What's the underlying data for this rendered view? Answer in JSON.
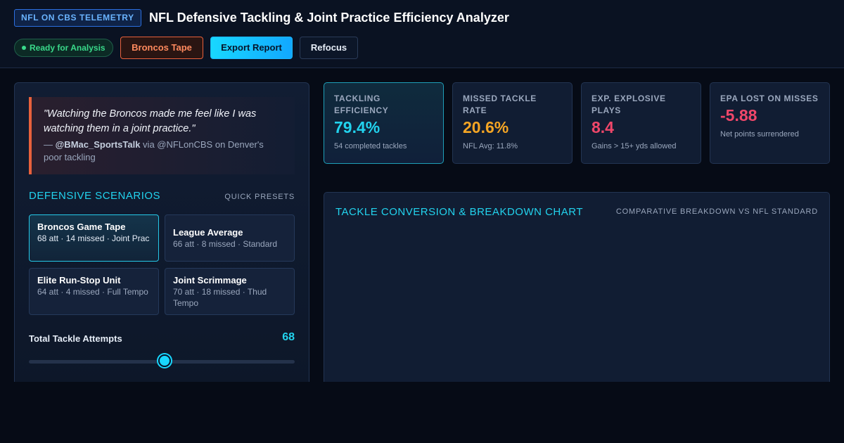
{
  "header": {
    "brand": "NFL ON CBS TELEMETRY",
    "title": "NFL Defensive Tackling & Joint Practice Efficiency Analyzer",
    "status": "Ready for Analysis",
    "buttons": {
      "broncos": "Broncos Tape",
      "export": "Export Report",
      "refocus": "Refocus"
    }
  },
  "quote": {
    "text": "\"Watching the Broncos made me feel like I was watching them in a joint practice.\"",
    "prefix": "— ",
    "handle": "@BMac_SportsTalk",
    "suffix": " via @NFLonCBS on Denver's poor tackling"
  },
  "scenarios": {
    "title": "DEFENSIVE SCENARIOS",
    "presets_label": "QUICK PRESETS",
    "items": [
      {
        "name": "Broncos Game Tape",
        "meta": "68 att · 14 missed · Joint Prac"
      },
      {
        "name": "League Average",
        "meta": "66 att · 8 missed · Standard"
      },
      {
        "name": "Elite Run-Stop Unit",
        "meta": "64 att · 4 missed · Full Tempo"
      },
      {
        "name": "Joint Scrimmage",
        "meta": "70 att · 18 missed · Thud Tempo"
      }
    ]
  },
  "slider": {
    "label": "Total Tackle Attempts",
    "value": "68",
    "fraction": 0.51
  },
  "kpis": [
    {
      "label": "TACKLING EFFICIENCY",
      "value": "79.4%",
      "sub": "54 completed tackles",
      "color": "#22d3ee"
    },
    {
      "label": "MISSED TACKLE RATE",
      "value": "20.6%",
      "sub": "NFL Avg: 11.8%",
      "color": "#f5a524"
    },
    {
      "label": "EXP. EXPLOSIVE PLAYS",
      "value": "8.4",
      "sub": "Gains > 15+ yds allowed",
      "color": "#f0476a"
    },
    {
      "label": "EPA LOST ON MISSES",
      "value": "-5.88",
      "sub": "Net points surrendered",
      "color": "#f0476a"
    }
  ],
  "chart": {
    "title": "TACKLE CONVERSION & BREAKDOWN CHART",
    "subtitle": "COMPARATIVE BREAKDOWN VS NFL STANDARD"
  }
}
